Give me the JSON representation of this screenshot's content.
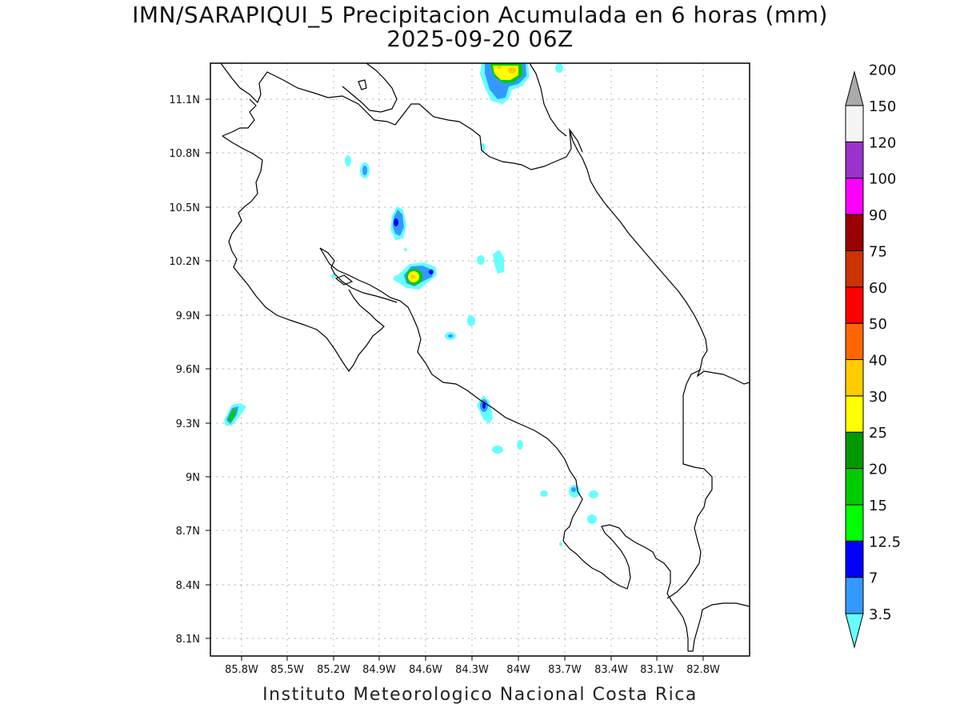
{
  "title_line1": "IMN/SARAPIQUI_5 Precipitacion Acumulada en 6 horas (mm)",
  "title_line2": "2025-09-20 06Z",
  "footer": "Instituto Meteorologico Nacional Costa Rica",
  "lat_ticks": [
    "11.1N",
    "10.8N",
    "10.5N",
    "10.2N",
    "9.9N",
    "9.6N",
    "9.3N",
    "9N",
    "8.7N",
    "8.4N",
    "8.1N"
  ],
  "lon_ticks": [
    "85.8W",
    "85.5W",
    "85.2W",
    "84.9W",
    "84.6W",
    "84.3W",
    "84W",
    "83.7W",
    "83.4W",
    "83.1W",
    "82.8W"
  ],
  "colorbar": {
    "labels": [
      "3.5",
      "7",
      "12.5",
      "15",
      "20",
      "25",
      "30",
      "40",
      "50",
      "60",
      "75",
      "90",
      "100",
      "120",
      "150",
      "200"
    ],
    "colors": [
      "#66ffff",
      "#3399ff",
      "#0000ff",
      "#00ff00",
      "#00cc00",
      "#009900",
      "#ffff00",
      "#ffcc00",
      "#ff6600",
      "#ff0000",
      "#cc3300",
      "#990000",
      "#ff00ff",
      "#9933cc",
      "#f5f5f5",
      "#aaaaaa"
    ]
  }
}
